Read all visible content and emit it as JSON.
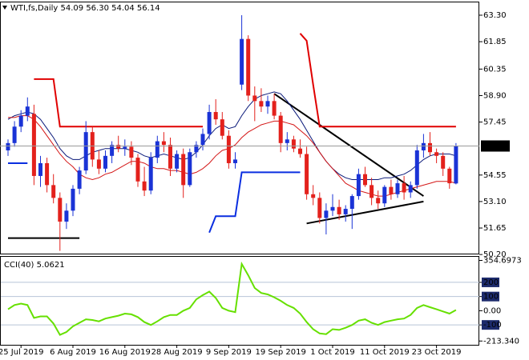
{
  "chart_data": [
    {
      "type": "candlestick",
      "title": "WTI,fs,Daily 54.09 56.30 54.04 56.14",
      "categories": [
        null,
        null,
        "25 Jul 2019",
        null,
        null,
        null,
        null,
        null,
        null,
        null,
        "6 Aug 2019",
        null,
        null,
        null,
        null,
        null,
        null,
        null,
        "16 Aug 2019",
        null,
        null,
        null,
        null,
        null,
        null,
        null,
        "28 Aug 2019",
        null,
        null,
        null,
        null,
        null,
        null,
        null,
        "9 Sep 2019",
        null,
        null,
        null,
        null,
        null,
        null,
        null,
        "19 Sep 2019",
        null,
        null,
        null,
        null,
        null,
        null,
        null,
        "1 Oct 2019",
        null,
        null,
        null,
        null,
        null,
        null,
        null,
        "11 Oct 2019",
        null,
        null,
        null,
        null,
        null,
        null,
        null,
        "23 Oct 2019",
        null,
        null,
        null
      ],
      "open": [
        55.9,
        56.3,
        57.2,
        57.8,
        57.9,
        54.5,
        55.2,
        54.0,
        53.3,
        52.0,
        52.6,
        53.8,
        54.8,
        56.9,
        55.4,
        54.9,
        55.6,
        56.2,
        56.0,
        56.1,
        55.5,
        54.2,
        53.7,
        55.5,
        56.4,
        56.2,
        54.9,
        55.7,
        54.0,
        55.8,
        56.2,
        56.8,
        58.0,
        57.6,
        56.7,
        55.2,
        59.5,
        62.0,
        58.9,
        58.6,
        58.3,
        58.6,
        57.8,
        56.3,
        56.5,
        56.0,
        55.7,
        53.5,
        53.3,
        52.2,
        52.6,
        52.8,
        52.4,
        52.7,
        53.4,
        54.6,
        54.0,
        53.3,
        53.0,
        53.9,
        53.5,
        54.1,
        53.6,
        54.0,
        55.9,
        56.3,
        55.8,
        55.6,
        54.9,
        54.09
      ],
      "high": [
        56.5,
        57.5,
        58.1,
        58.8,
        58.4,
        55.6,
        55.5,
        54.6,
        53.6,
        53.0,
        54.0,
        55.0,
        57.5,
        57.2,
        55.9,
        55.9,
        56.4,
        56.7,
        56.5,
        56.4,
        55.7,
        55.0,
        55.8,
        56.7,
        56.9,
        56.6,
        55.9,
        56.0,
        56.0,
        56.4,
        57.1,
        58.4,
        58.7,
        58.0,
        57.0,
        55.8,
        63.3,
        62.2,
        59.4,
        59.3,
        58.9,
        59.0,
        58.0,
        56.9,
        56.7,
        56.5,
        56.1,
        54.0,
        53.6,
        53.0,
        53.5,
        53.2,
        52.9,
        53.5,
        54.9,
        55.0,
        54.4,
        53.7,
        54.0,
        54.3,
        54.3,
        54.5,
        54.2,
        56.2,
        56.8,
        56.9,
        56.0,
        55.8,
        55.0,
        56.3
      ],
      "low": [
        55.6,
        56.1,
        56.9,
        57.5,
        54.0,
        53.9,
        53.6,
        53.0,
        50.4,
        51.6,
        52.3,
        53.5,
        54.6,
        55.0,
        54.6,
        54.7,
        55.2,
        55.8,
        55.6,
        55.1,
        53.9,
        53.4,
        53.5,
        55.2,
        55.8,
        54.5,
        54.7,
        53.3,
        53.9,
        55.5,
        55.9,
        56.5,
        57.3,
        56.5,
        54.9,
        54.9,
        59.2,
        58.6,
        57.5,
        58.0,
        57.9,
        57.6,
        55.8,
        55.9,
        55.8,
        55.5,
        53.2,
        52.9,
        51.9,
        51.3,
        52.3,
        52.1,
        52.0,
        51.6,
        53.2,
        53.9,
        52.9,
        52.7,
        52.8,
        53.2,
        53.3,
        53.2,
        53.3,
        53.8,
        55.5,
        55.6,
        55.2,
        54.5,
        53.8,
        54.04
      ],
      "close": [
        56.3,
        57.2,
        57.8,
        58.3,
        54.5,
        55.2,
        54.0,
        53.3,
        52.0,
        52.6,
        53.8,
        54.8,
        56.9,
        55.4,
        54.9,
        55.6,
        56.2,
        56.0,
        56.1,
        55.5,
        54.2,
        53.7,
        55.5,
        56.4,
        56.2,
        54.9,
        55.7,
        54.0,
        55.8,
        56.2,
        56.8,
        58.0,
        57.6,
        56.7,
        55.2,
        55.4,
        62.0,
        58.9,
        58.6,
        58.3,
        58.6,
        57.8,
        56.3,
        56.5,
        56.0,
        55.7,
        53.5,
        53.3,
        52.2,
        52.6,
        52.8,
        52.4,
        52.7,
        53.4,
        54.6,
        54.0,
        53.3,
        53.0,
        53.9,
        53.5,
        54.1,
        53.6,
        54.0,
        55.9,
        56.3,
        55.8,
        55.6,
        54.9,
        54.1,
        56.14
      ],
      "up_color": "#1a33d6",
      "down_color": "#e3211c",
      "ylim": [
        50.25,
        64.0
      ],
      "yticks": [
        {
          "value": 63.3,
          "label": "63.30"
        },
        61.85,
        60.35,
        {
          "value": 58.9,
          "label": "58.90"
        },
        57.45,
        54.55,
        {
          "value": 53.1,
          "label": "53.10"
        },
        51.65,
        {
          "value": 50.2,
          "label": "50.20"
        }
      ],
      "grid": false,
      "last_price": 56.14,
      "overlays": [
        {
          "color": "#0b1a7a",
          "width": 1,
          "values": [
            57.6,
            57.8,
            57.9,
            58.0,
            57.9,
            57.6,
            57.1,
            56.6,
            56.0,
            55.6,
            55.4,
            55.4,
            55.6,
            55.8,
            55.9,
            56.0,
            56.0,
            56.0,
            56.0,
            55.9,
            55.8,
            55.6,
            55.5,
            55.6,
            55.7,
            55.6,
            55.5,
            55.4,
            55.5,
            55.8,
            56.2,
            56.7,
            57.1,
            57.3,
            57.1,
            57.2,
            57.8,
            58.3,
            58.7,
            58.9,
            59.0,
            59.1,
            59.0,
            58.6,
            58.1,
            57.6,
            57.0,
            56.4,
            55.8,
            55.3,
            54.9,
            54.6,
            54.4,
            54.3,
            54.3,
            54.3,
            54.3,
            54.3,
            54.4,
            54.4,
            54.5,
            54.6,
            54.8,
            55.1,
            55.4,
            55.6,
            55.7,
            55.7,
            55.7,
            55.6
          ]
        },
        {
          "color": "#d41616",
          "width": 1,
          "values": [
            57.7,
            57.7,
            57.8,
            57.8,
            57.6,
            57.2,
            56.7,
            56.2,
            55.7,
            55.3,
            55.0,
            54.6,
            54.4,
            54.3,
            54.4,
            54.6,
            54.7,
            54.9,
            55.1,
            55.3,
            55.3,
            55.2,
            55.0,
            54.9,
            54.9,
            54.8,
            54.8,
            54.7,
            54.6,
            54.7,
            54.9,
            55.2,
            55.6,
            55.9,
            56.0,
            56.2,
            56.6,
            56.9,
            57.1,
            57.3,
            57.4,
            57.5,
            57.5,
            57.4,
            57.3,
            57.0,
            56.7,
            56.3,
            55.8,
            55.3,
            54.9,
            54.5,
            54.1,
            53.9,
            53.7,
            53.6,
            53.5,
            53.4,
            53.4,
            53.5,
            53.6,
            53.7,
            53.8,
            53.9,
            54.0,
            54.1,
            54.2,
            54.2,
            54.2,
            54.1
          ]
        },
        {
          "color": "#e00000",
          "width": 2,
          "values": [
            null,
            null,
            null,
            null,
            59.8,
            59.8,
            59.8,
            59.8,
            57.2,
            57.2,
            57.2,
            57.2,
            57.2,
            57.2,
            57.2,
            57.2,
            57.2,
            57.2,
            57.2,
            57.2,
            57.2,
            57.2,
            57.2,
            57.2,
            57.2,
            57.2,
            57.2,
            57.2,
            57.2,
            57.2,
            57.2,
            null,
            null,
            null,
            null,
            null,
            null,
            null,
            null,
            null,
            null,
            null,
            null,
            null,
            null,
            62.3,
            61.9,
            59.5,
            57.2,
            57.2,
            57.2,
            57.2,
            57.2,
            57.2,
            57.2,
            57.2,
            57.2,
            57.2,
            57.2,
            57.2,
            57.2,
            57.2,
            57.2,
            57.2,
            57.2,
            57.2,
            57.2,
            57.2,
            57.2,
            57.2
          ]
        },
        {
          "color": "#0a2ee0",
          "width": 2,
          "values": [
            55.2,
            55.2,
            55.2,
            55.2,
            null,
            null,
            null,
            null,
            null,
            null,
            null,
            null,
            null,
            null,
            null,
            null,
            null,
            null,
            null,
            null,
            null,
            null,
            null,
            null,
            null,
            null,
            null,
            null,
            null,
            null,
            null,
            51.4,
            52.3,
            52.3,
            52.3,
            52.3,
            54.7,
            54.7,
            54.7,
            54.7,
            54.7,
            54.7,
            54.7,
            54.7,
            54.7,
            54.7,
            null,
            null,
            null,
            null,
            null,
            null,
            null,
            null,
            null,
            null,
            null,
            null,
            null,
            null,
            null,
            null,
            null,
            null,
            null,
            null,
            null,
            null,
            null,
            null
          ]
        }
      ],
      "trendlines": [
        {
          "x": [
            0,
            11
          ],
          "y": [
            51.1,
            51.1
          ]
        },
        {
          "x": [
            41,
            64
          ],
          "y": [
            59.0,
            53.4
          ]
        },
        {
          "x": [
            46,
            64
          ],
          "y": [
            51.9,
            53.1
          ]
        }
      ]
    },
    {
      "type": "line",
      "title": "CCI(40) 5.0621",
      "color": "#66e000",
      "values": [
        10,
        40,
        50,
        40,
        -50,
        -40,
        -40,
        -90,
        -170,
        -150,
        -110,
        -85,
        -60,
        -65,
        -75,
        -55,
        -45,
        -35,
        -20,
        -25,
        -45,
        -80,
        -100,
        -75,
        -45,
        -30,
        -30,
        0,
        20,
        80,
        110,
        135,
        90,
        20,
        0,
        -10,
        330,
        250,
        160,
        125,
        115,
        95,
        70,
        40,
        20,
        -20,
        -80,
        -130,
        -160,
        -165,
        -130,
        -135,
        -120,
        -100,
        -70,
        -60,
        -85,
        -100,
        -80,
        -70,
        -60,
        -55,
        -30,
        20,
        40,
        25,
        10,
        -5,
        -20,
        5.0621
      ],
      "ylim": [
        -240,
        380
      ],
      "yticks": [
        354.6973,
        200,
        100,
        {
          "value": 0,
          "label": "0.00"
        },
        -100,
        {
          "value": -213.34,
          "label": "-213.340"
        }
      ],
      "levels": [
        200,
        100,
        -100
      ]
    }
  ]
}
